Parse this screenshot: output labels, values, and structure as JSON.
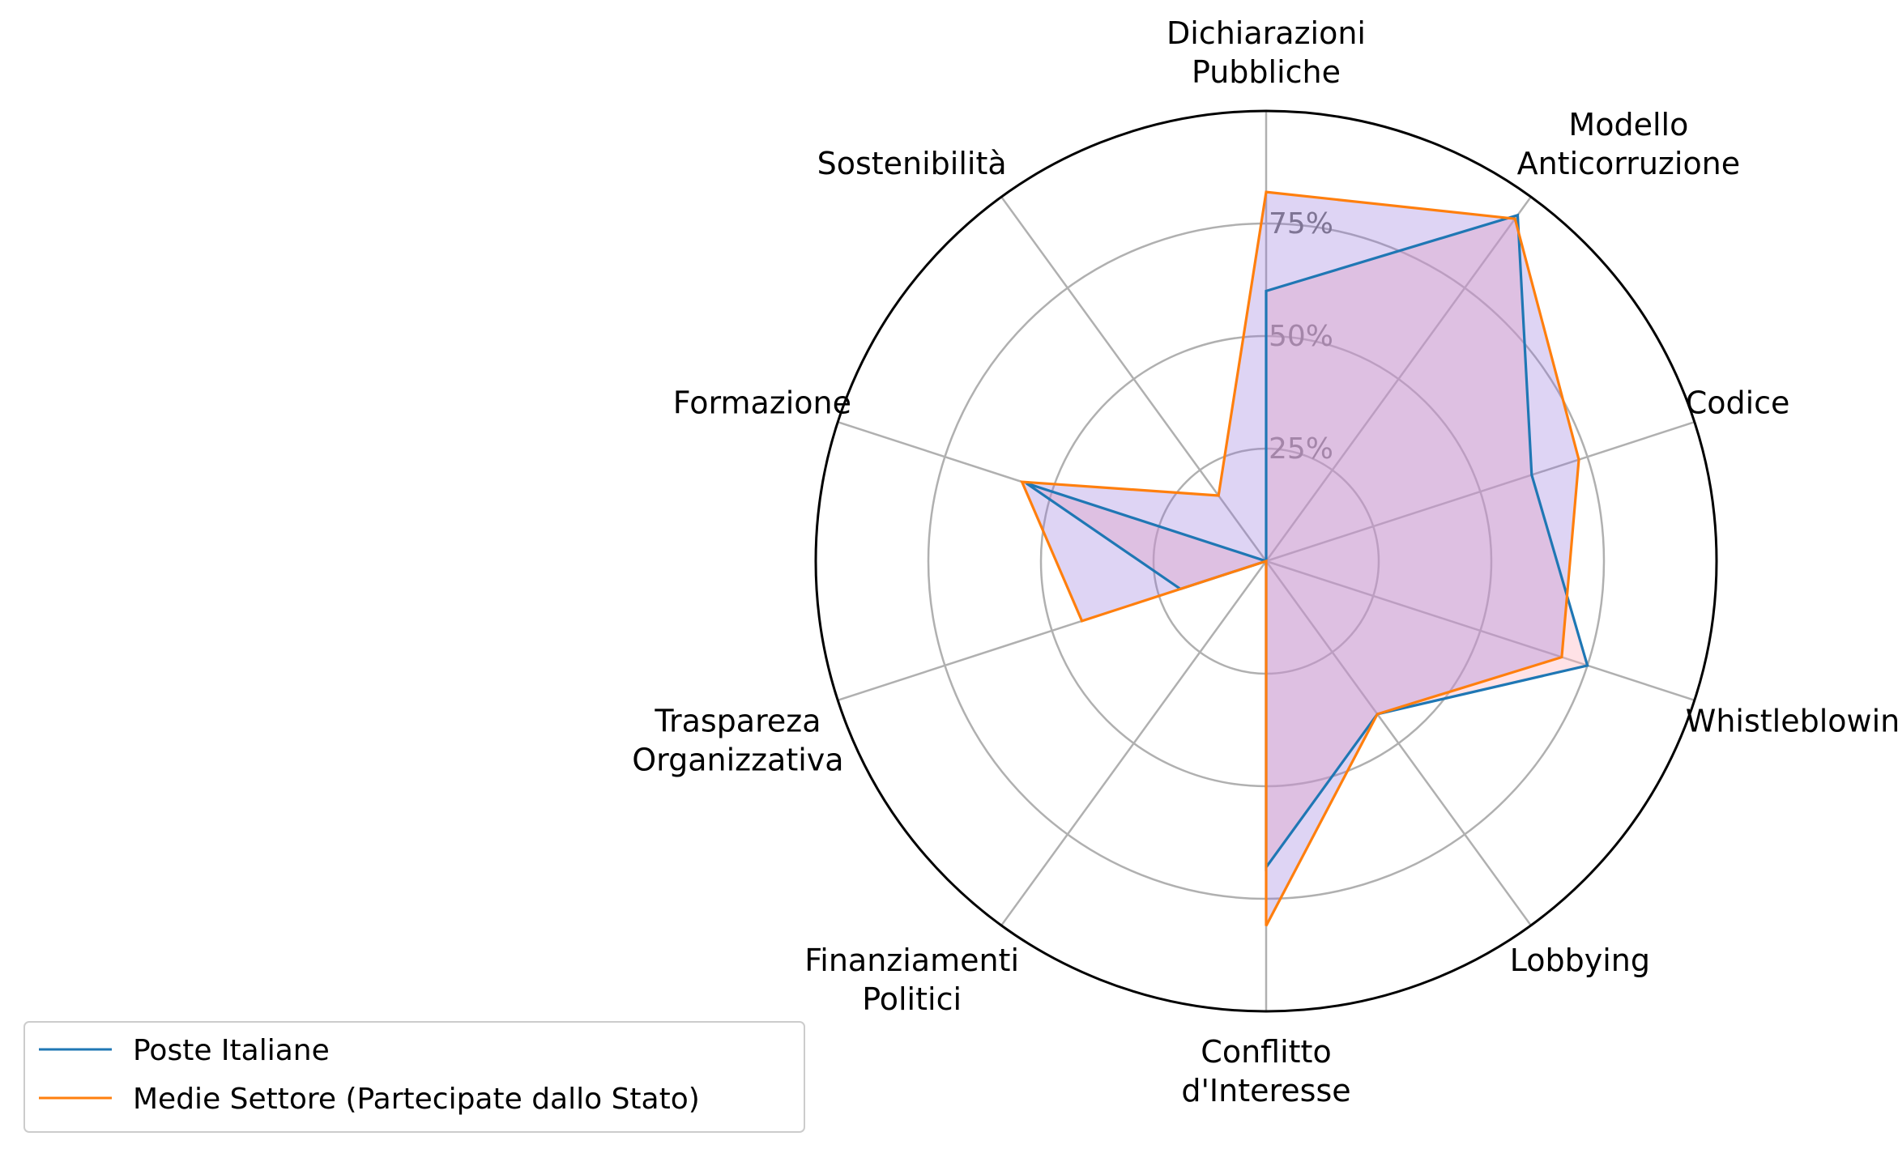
{
  "chart_data": {
    "type": "radar",
    "categories": [
      [
        "Dichiarazioni",
        "Pubbliche"
      ],
      [
        "Modello",
        "Anticorruzione"
      ],
      [
        "Codice"
      ],
      [
        "Whistleblowing"
      ],
      [
        "Lobbying"
      ],
      [
        "Conflitto",
        "d'Interesse"
      ],
      [
        "Finanziamenti",
        "Politici"
      ],
      [
        "Traspareza",
        "Organizzativa"
      ],
      [
        "Formazione"
      ],
      [
        "Sostenibilità"
      ]
    ],
    "rmax": 100,
    "rticks": [
      25,
      50,
      75
    ],
    "rtick_labels": [
      "25%",
      "50%",
      "75%"
    ],
    "series": [
      {
        "name": "Poste Italiane",
        "color": "#1f77b4",
        "values": [
          60,
          95,
          62,
          75,
          42,
          68,
          0,
          20,
          56,
          0
        ]
      },
      {
        "name": "Medie Settore (Partecipate dallo Stato)",
        "color": "#ff7f0e",
        "values": [
          82,
          94,
          73,
          69,
          42,
          81,
          0,
          43,
          57,
          18
        ]
      }
    ],
    "fill_colors": [
      "#ffb6c1",
      "#9370db"
    ],
    "grid": true,
    "legend_position": "lower-left"
  }
}
